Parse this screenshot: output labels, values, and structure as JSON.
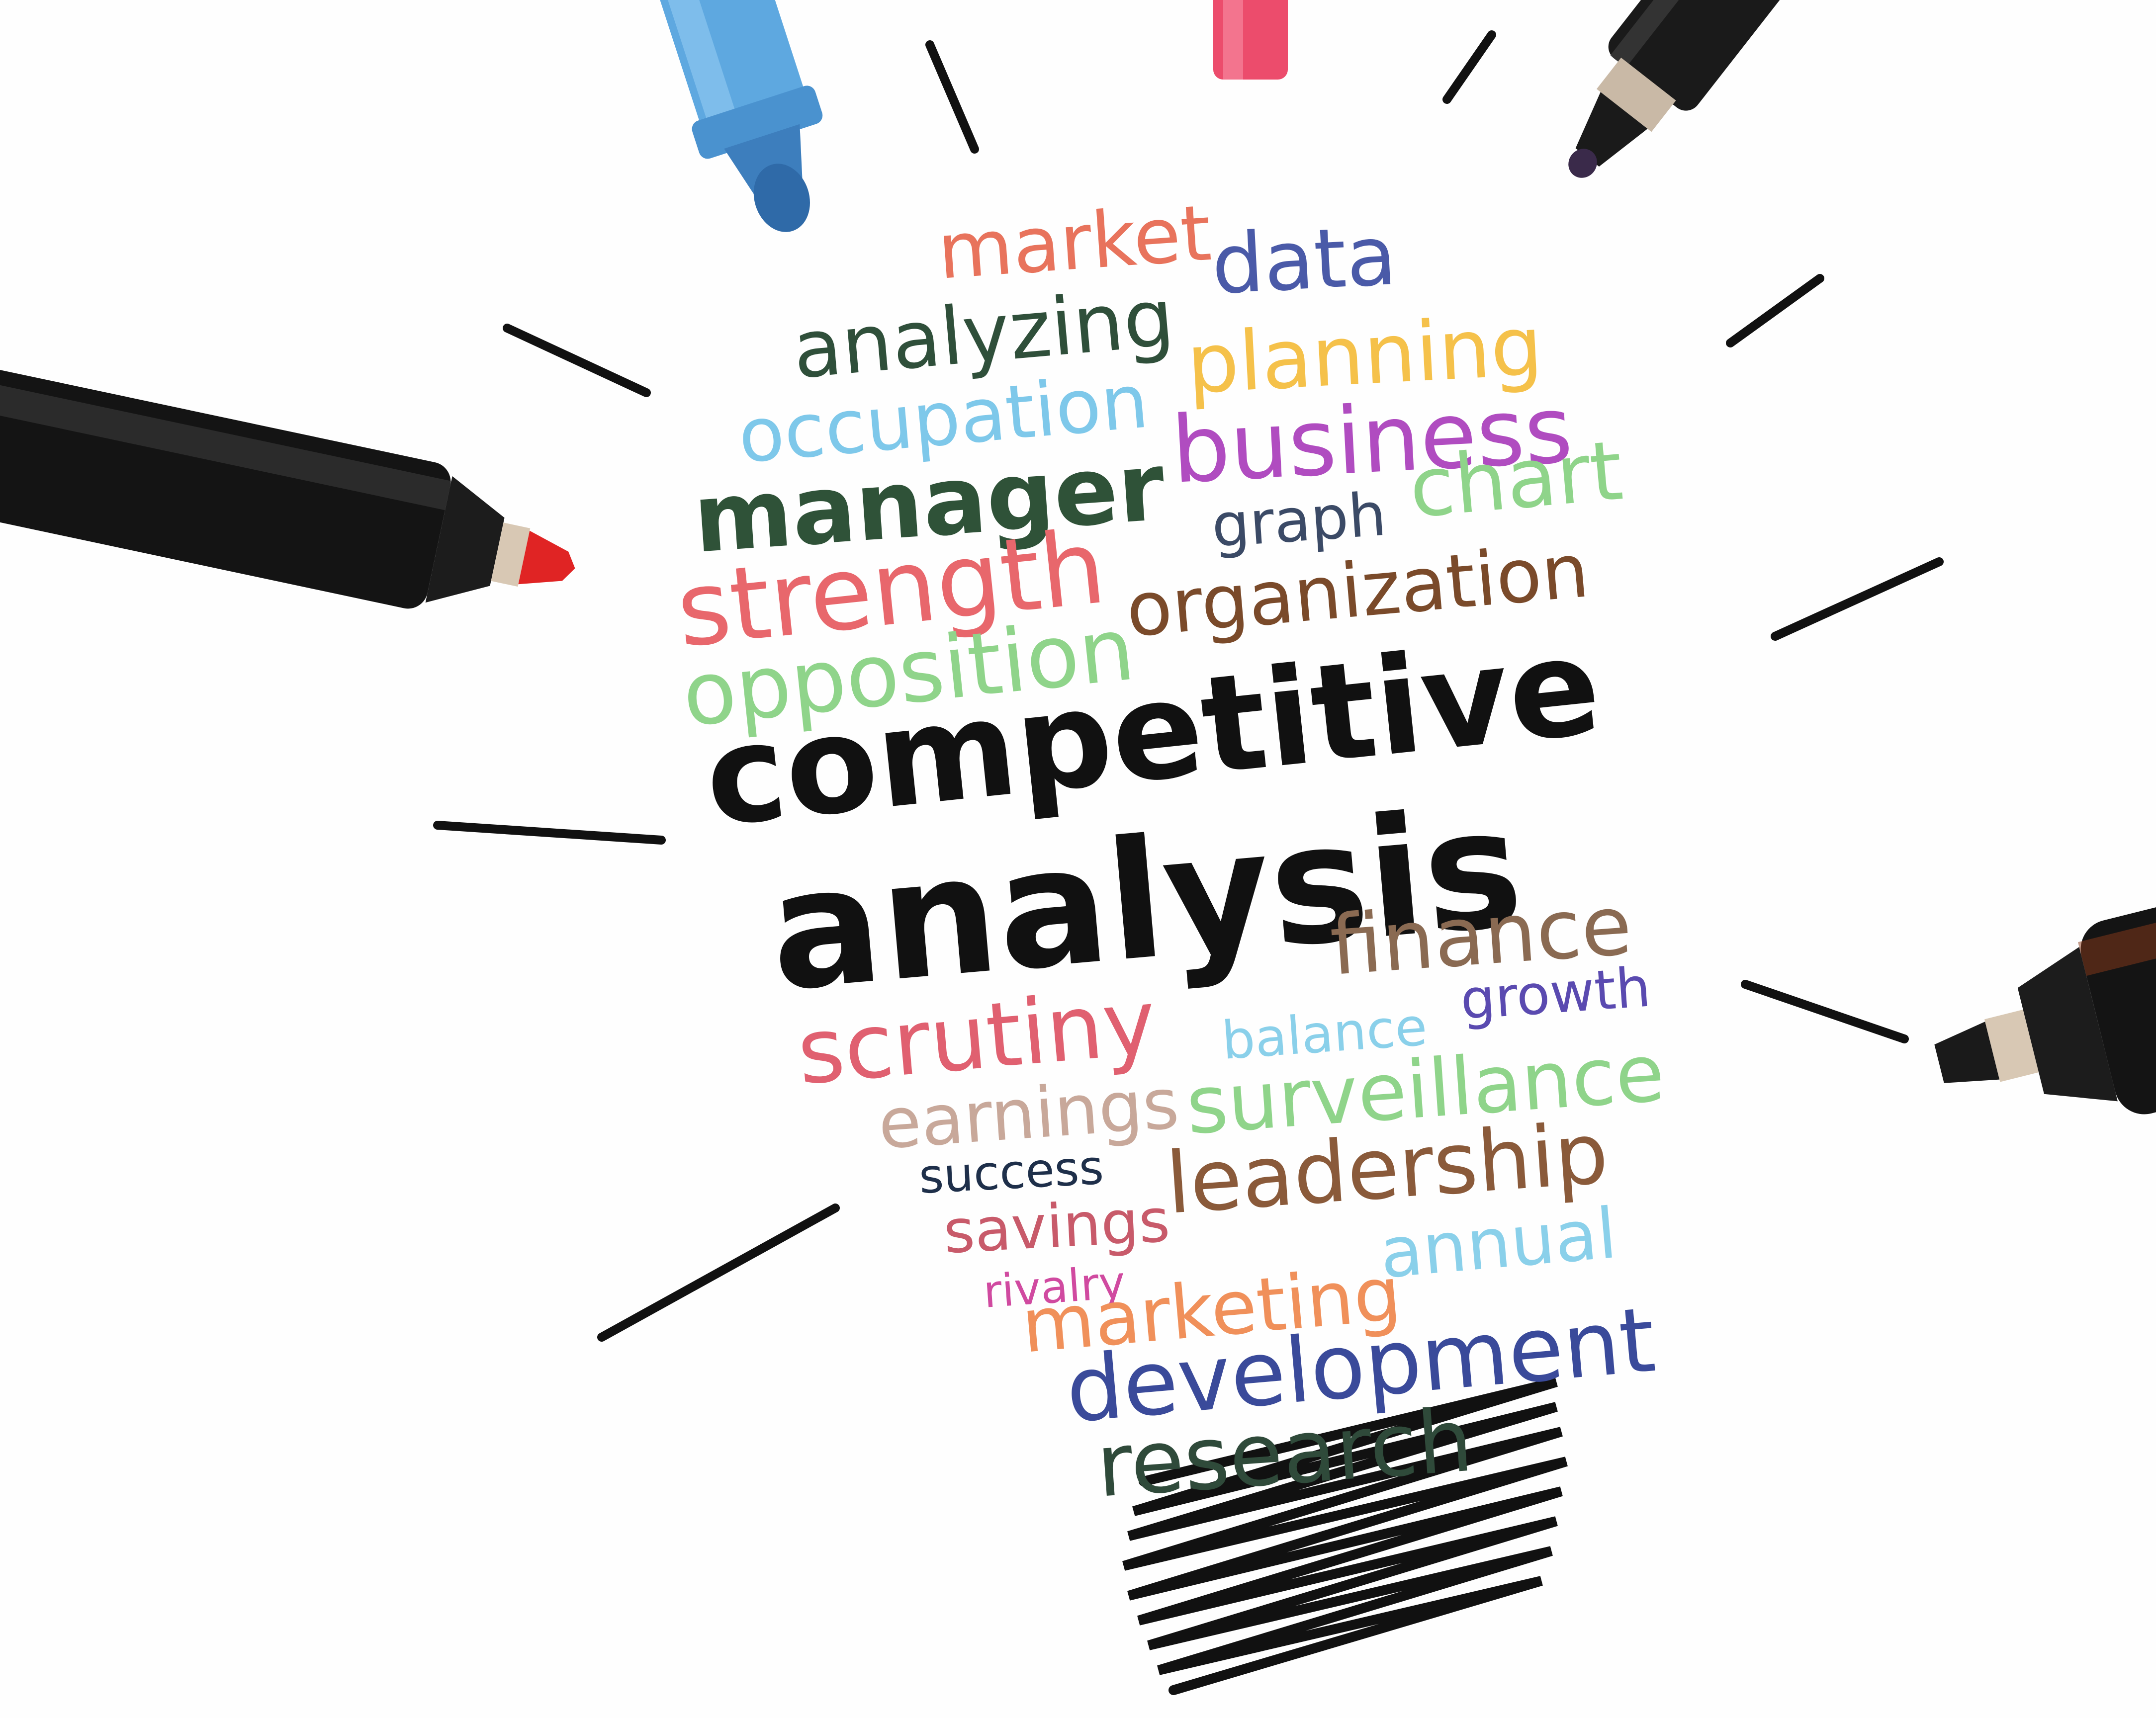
{
  "words": {
    "market": "market",
    "analyzing": "analyzing",
    "data": "data",
    "occupation": "occupation",
    "planning": "planning",
    "manager": "manager",
    "business": "business",
    "graph": "graph",
    "chart": "chart",
    "strength": "strength",
    "organization": "organization",
    "opposition": "opposition",
    "competitive": "competitive",
    "analysis": "analysis",
    "finance": "finance",
    "scrutiny": "scrutiny",
    "balance": "balance",
    "growth": "growth",
    "earnings": "earnings",
    "surveillance": "surveillance",
    "success": "success",
    "leadership": "leadership",
    "savings": "savings",
    "annual": "annual",
    "rivalry": "rivalry",
    "marketing": "marketing",
    "development": "development",
    "research": "research"
  },
  "colors": {
    "market": "#e8735c",
    "analyzing": "#2f4f3a",
    "data": "#4a5aa8",
    "occupation": "#7ec8ea",
    "planning": "#f5c14a",
    "manager": "#2f5238",
    "business": "#b04cc0",
    "graph": "#3b4a66",
    "chart": "#8fd48a",
    "strength": "#e8676c",
    "organization": "#7a4a2a",
    "opposition": "#8fd48a",
    "headline": "#111111",
    "finance": "#8a6a52",
    "scrutiny": "#e06070",
    "balance": "#8ad0ea",
    "growth": "#5a4ab0",
    "earnings": "#c8a89a",
    "surveillance": "#8fd48a",
    "success": "#1e2f4a",
    "leadership": "#8a5a3a",
    "savings": "#c85a6a",
    "annual": "#8ad0ea",
    "rivalry": "#d04aa0",
    "marketing": "#f0905a",
    "development": "#3a4a9a",
    "research": "#2f4a3a",
    "ink": "#111111"
  },
  "icons": {
    "blue_marker": "blue-marker-icon",
    "pink_marker": "pink-marker-icon",
    "black_marker_top": "black-marker-icon",
    "red_marker": "red-marker-icon",
    "black_marker_right": "black-marker-icon",
    "lightbulb": "lightbulb-icon"
  }
}
